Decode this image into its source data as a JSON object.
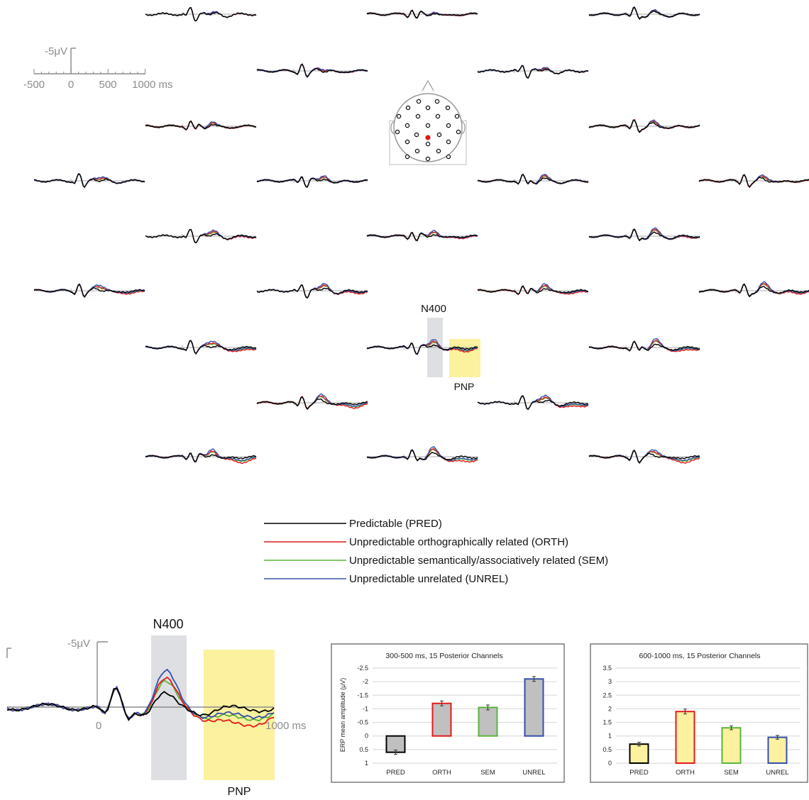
{
  "scale_bar": {
    "amplitude_label": "-5μV",
    "ticks": [
      "-500",
      "0",
      "500",
      "1000 ms"
    ]
  },
  "conditions": [
    {
      "key": "PRED",
      "label": "Predictable (PRED)",
      "color": "#000000"
    },
    {
      "key": "ORTH",
      "label": "Unpredictable orthographically related (ORTH)",
      "color": "#e41a1c"
    },
    {
      "key": "SEM",
      "label": "Unpredictable semantically/associatively related (SEM)",
      "color": "#5ab43c"
    },
    {
      "key": "UNREL",
      "label": "Unpredictable unrelated (UNREL)",
      "color": "#3750a8"
    }
  ],
  "windows": {
    "n400": {
      "label": "N400",
      "range_ms": [
        300,
        500
      ]
    },
    "pnp": {
      "label": "PNP",
      "range_ms": [
        600,
        1000
      ]
    }
  },
  "highlight_colors": {
    "n400": "#dedfe2",
    "pnp": "#fbf19f",
    "highlight_electrode": "#e41a1c"
  },
  "enlarged": {
    "amplitude_label": "-5μV",
    "zero_label": "0",
    "end_label": "1000 ms"
  },
  "chart_data": [
    {
      "type": "bar",
      "title": "300-500 ms, 15 Posterior Channels",
      "ylabel": "ERP mean amplitude (μV)",
      "categories": [
        "PRED",
        "ORTH",
        "SEM",
        "UNREL"
      ],
      "values": [
        0.6,
        -1.2,
        -1.05,
        -2.1
      ],
      "errors": [
        0.08,
        0.09,
        0.09,
        0.09
      ],
      "ylim": [
        1,
        -2.5
      ],
      "yticks": [
        "-2.5",
        "-2",
        "-1.5",
        "-1",
        "-0.5",
        "0",
        "0.5",
        "1"
      ],
      "bar_fill": "#c0c0c0",
      "grid": true
    },
    {
      "type": "bar",
      "title": "600-1000 ms, 15 Posterior Channels",
      "categories": [
        "PRED",
        "ORTH",
        "SEM",
        "UNREL"
      ],
      "values": [
        0.7,
        1.9,
        1.3,
        0.95
      ],
      "errors": [
        0.07,
        0.09,
        0.07,
        0.07
      ],
      "ylim": [
        0,
        3.5
      ],
      "yticks": [
        "0",
        "0.5",
        "1",
        "1.5",
        "2",
        "2.5",
        "3",
        "3.5"
      ],
      "bar_fill": "#fbf19f",
      "grid": true
    }
  ]
}
